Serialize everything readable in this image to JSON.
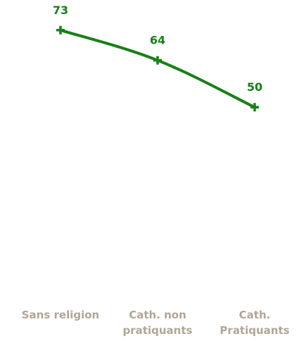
{
  "chart_data": {
    "type": "line",
    "categories": [
      [
        "Sans religion"
      ],
      [
        "Cath. non",
        "pratiquants"
      ],
      [
        "Cath.",
        "Pratiquants"
      ]
    ],
    "series": [
      {
        "values": [
          73,
          64,
          50
        ],
        "color": "#178017"
      }
    ],
    "xlabel": "",
    "ylabel": "",
    "ylim": [
      0,
      82
    ],
    "grid": false,
    "legend": "none",
    "data_labels": true,
    "category_label_color": "#b3a596"
  }
}
